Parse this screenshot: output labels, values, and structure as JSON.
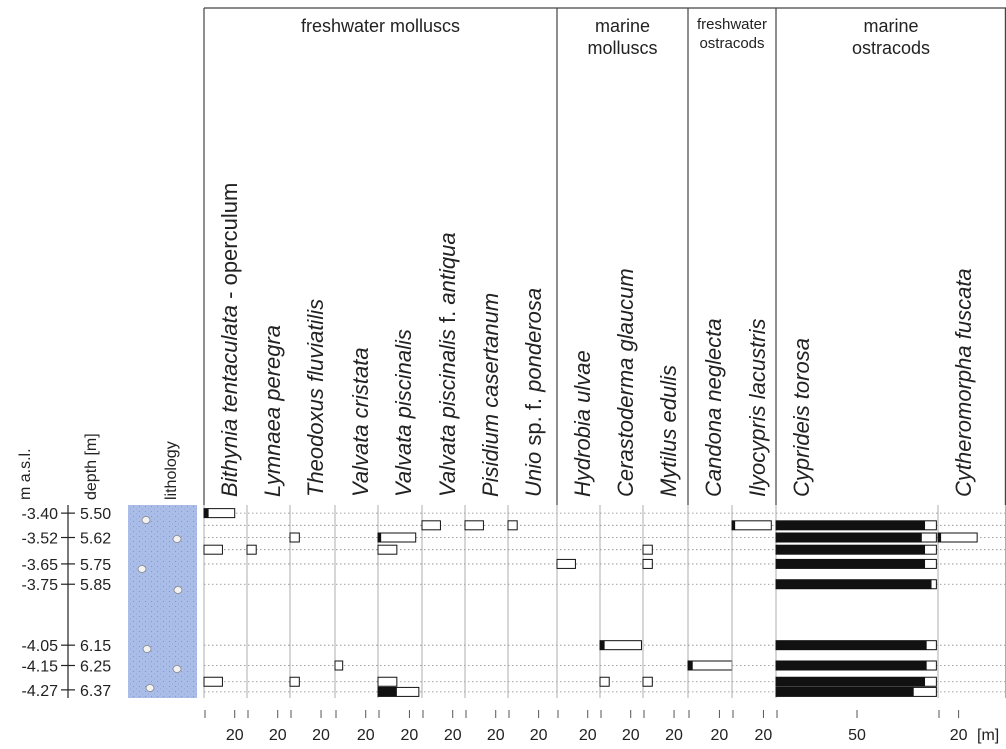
{
  "chart_data": {
    "type": "stratigraphic",
    "axis_titles": {
      "masl": "m a.s.l.",
      "depth": "depth [m]",
      "lithology": "lithology"
    },
    "x_unit": "[m]",
    "ylim": [
      5.46,
      6.41
    ],
    "y2lim": [
      -3.36,
      -4.31
    ],
    "yticks": [
      {
        "value": 5.5,
        "label": "5.50"
      },
      {
        "value": 5.62,
        "label": "5.62"
      },
      {
        "value": 5.75,
        "label": "5.75"
      },
      {
        "value": 5.85,
        "label": "5.85"
      },
      {
        "value": 6.15,
        "label": "6.15"
      },
      {
        "value": 6.25,
        "label": "6.25"
      },
      {
        "value": 6.37,
        "label": "6.37"
      }
    ],
    "y2ticks": [
      {
        "value": -3.4,
        "label": "-3.40"
      },
      {
        "value": -3.52,
        "label": "-3.52"
      },
      {
        "value": -3.65,
        "label": "-3.65"
      },
      {
        "value": -3.75,
        "label": "-3.75"
      },
      {
        "value": -4.05,
        "label": "-4.05"
      },
      {
        "value": -4.15,
        "label": "-4.15"
      },
      {
        "value": -4.27,
        "label": "-4.27"
      }
    ],
    "samples": [
      5.5,
      5.56,
      5.62,
      5.68,
      5.75,
      5.85,
      6.15,
      6.25,
      6.33,
      6.38
    ],
    "groups": [
      {
        "name": [
          "freshwater molluscs"
        ],
        "taxa": [
          {
            "label": [
              "Bithynia tentaculata",
              " - operculum"
            ],
            "italic": [
              true,
              false
            ],
            "xlim": [
              0,
              28
            ],
            "xticks": [
              20
            ],
            "values": [
              20,
              null,
              null,
              12,
              null,
              null,
              null,
              null,
              12,
              null
            ],
            "filled": [
              3,
              null,
              null,
              null,
              null,
              null,
              null,
              null,
              null,
              null
            ]
          },
          {
            "label": [
              "Lymnaea peregra"
            ],
            "italic": [
              true
            ],
            "xlim": [
              0,
              28
            ],
            "xticks": [
              20
            ],
            "values": [
              null,
              null,
              null,
              6,
              null,
              null,
              null,
              null,
              null,
              null
            ],
            "filled": [
              null,
              null,
              null,
              null,
              null,
              null,
              null,
              null,
              null,
              null
            ]
          },
          {
            "label": [
              "Theodoxus fluviatilis"
            ],
            "italic": [
              true
            ],
            "xlim": [
              0,
              29
            ],
            "xticks": [
              20
            ],
            "values": [
              null,
              null,
              6,
              null,
              null,
              null,
              null,
              null,
              6,
              null
            ],
            "filled": [
              null,
              null,
              null,
              null,
              null,
              null,
              null,
              null,
              null,
              null
            ]
          },
          {
            "label": [
              "Valvata cristata"
            ],
            "italic": [
              true
            ],
            "xlim": [
              0,
              28
            ],
            "xticks": [
              20
            ],
            "values": [
              null,
              null,
              null,
              null,
              null,
              null,
              null,
              5,
              null,
              null
            ],
            "filled": [
              null,
              null,
              null,
              null,
              null,
              null,
              null,
              null,
              null,
              null
            ]
          },
          {
            "label": [
              "Valvata piscinalis"
            ],
            "italic": [
              true
            ],
            "xlim": [
              0,
              28
            ],
            "xticks": [
              20
            ],
            "values": [
              null,
              null,
              24,
              12,
              null,
              null,
              null,
              null,
              12,
              26
            ],
            "filled": [
              null,
              null,
              2,
              null,
              null,
              null,
              null,
              null,
              null,
              12
            ]
          },
          {
            "label": [
              "Valvata piscinalis",
              " f. ",
              "antiqua"
            ],
            "italic": [
              true,
              false,
              true
            ],
            "xlim": [
              0,
              28
            ],
            "xticks": [
              20
            ],
            "values": [
              null,
              12,
              null,
              null,
              null,
              null,
              null,
              null,
              null,
              null
            ],
            "filled": [
              null,
              null,
              null,
              null,
              null,
              null,
              null,
              null,
              null,
              null
            ]
          },
          {
            "label": [
              "Pisidium casertanum"
            ],
            "italic": [
              true
            ],
            "xlim": [
              0,
              28
            ],
            "xticks": [
              20
            ],
            "values": [
              null,
              12,
              null,
              null,
              null,
              null,
              null,
              null,
              null,
              null
            ],
            "filled": [
              null,
              null,
              null,
              null,
              null,
              null,
              null,
              null,
              null,
              null
            ]
          },
          {
            "label": [
              "Unio",
              " sp. f. ",
              "ponderosa"
            ],
            "italic": [
              true,
              false,
              true
            ],
            "xlim": [
              0,
              32
            ],
            "xticks": [
              20
            ],
            "values": [
              null,
              6,
              null,
              null,
              null,
              null,
              null,
              null,
              null,
              null
            ],
            "filled": [
              null,
              null,
              null,
              null,
              null,
              null,
              null,
              null,
              null,
              null
            ]
          }
        ]
      },
      {
        "name": [
          "marine",
          "molluscs"
        ],
        "taxa": [
          {
            "label": [
              "Hydrobia ulvae"
            ],
            "italic": [
              true
            ],
            "xlim": [
              0,
              28
            ],
            "xticks": [
              20
            ],
            "values": [
              null,
              null,
              null,
              null,
              12,
              null,
              null,
              null,
              null,
              null
            ],
            "filled": [
              null,
              null,
              null,
              null,
              null,
              null,
              null,
              null,
              null,
              null
            ]
          },
          {
            "label": [
              "Cerastoderma glaucum"
            ],
            "italic": [
              true
            ],
            "xlim": [
              0,
              28
            ],
            "xticks": [
              20
            ],
            "values": [
              null,
              null,
              null,
              null,
              null,
              null,
              27,
              null,
              6,
              null
            ],
            "filled": [
              null,
              null,
              null,
              null,
              null,
              null,
              3,
              null,
              null,
              null
            ]
          },
          {
            "label": [
              "Mytilus edulis"
            ],
            "italic": [
              true
            ],
            "xlim": [
              0,
              29
            ],
            "xticks": [
              20
            ],
            "values": [
              null,
              null,
              null,
              6,
              6,
              null,
              null,
              null,
              6,
              null
            ],
            "filled": [
              null,
              null,
              null,
              null,
              null,
              null,
              null,
              null,
              null,
              null
            ]
          }
        ]
      },
      {
        "name": [
          "freshwater",
          "ostracods"
        ],
        "taxa": [
          {
            "label": [
              "Candona neglecta"
            ],
            "italic": [
              true
            ],
            "xlim": [
              0,
              28
            ],
            "xticks": [
              20
            ],
            "values": [
              null,
              null,
              null,
              null,
              null,
              null,
              null,
              28,
              null,
              null
            ],
            "filled": [
              null,
              null,
              null,
              null,
              null,
              null,
              null,
              3,
              null,
              null
            ]
          },
          {
            "label": [
              "Ilyocypris lacustris"
            ],
            "italic": [
              true
            ],
            "xlim": [
              0,
              28
            ],
            "xticks": [
              20
            ],
            "values": [
              null,
              25,
              null,
              null,
              null,
              null,
              null,
              null,
              null,
              null
            ],
            "filled": [
              null,
              2,
              null,
              null,
              null,
              null,
              null,
              null,
              null,
              null
            ]
          }
        ]
      },
      {
        "name": [
          "marine",
          "ostracods"
        ],
        "taxa": [
          {
            "label": [
              "Cyprideis torosa"
            ],
            "italic": [
              true
            ],
            "xlim": [
              0,
              100
            ],
            "xticks": [
              50
            ],
            "values": [
              null,
              99,
              99,
              99,
              99,
              99,
              99,
              99,
              99,
              99
            ],
            "filled": [
              null,
              92,
              90,
              92,
              92,
              96,
              93,
              93,
              92,
              85
            ]
          },
          {
            "label": [
              "Cytheromorpha fuscata"
            ],
            "italic": [
              true
            ],
            "xlim": [
              0,
              66
            ],
            "xticks": [
              20
            ],
            "values": [
              null,
              null,
              38,
              null,
              null,
              null,
              null,
              null,
              null,
              null
            ],
            "filled": [
              null,
              null,
              3,
              null,
              null,
              null,
              null,
              null,
              null,
              null
            ]
          }
        ]
      }
    ]
  }
}
